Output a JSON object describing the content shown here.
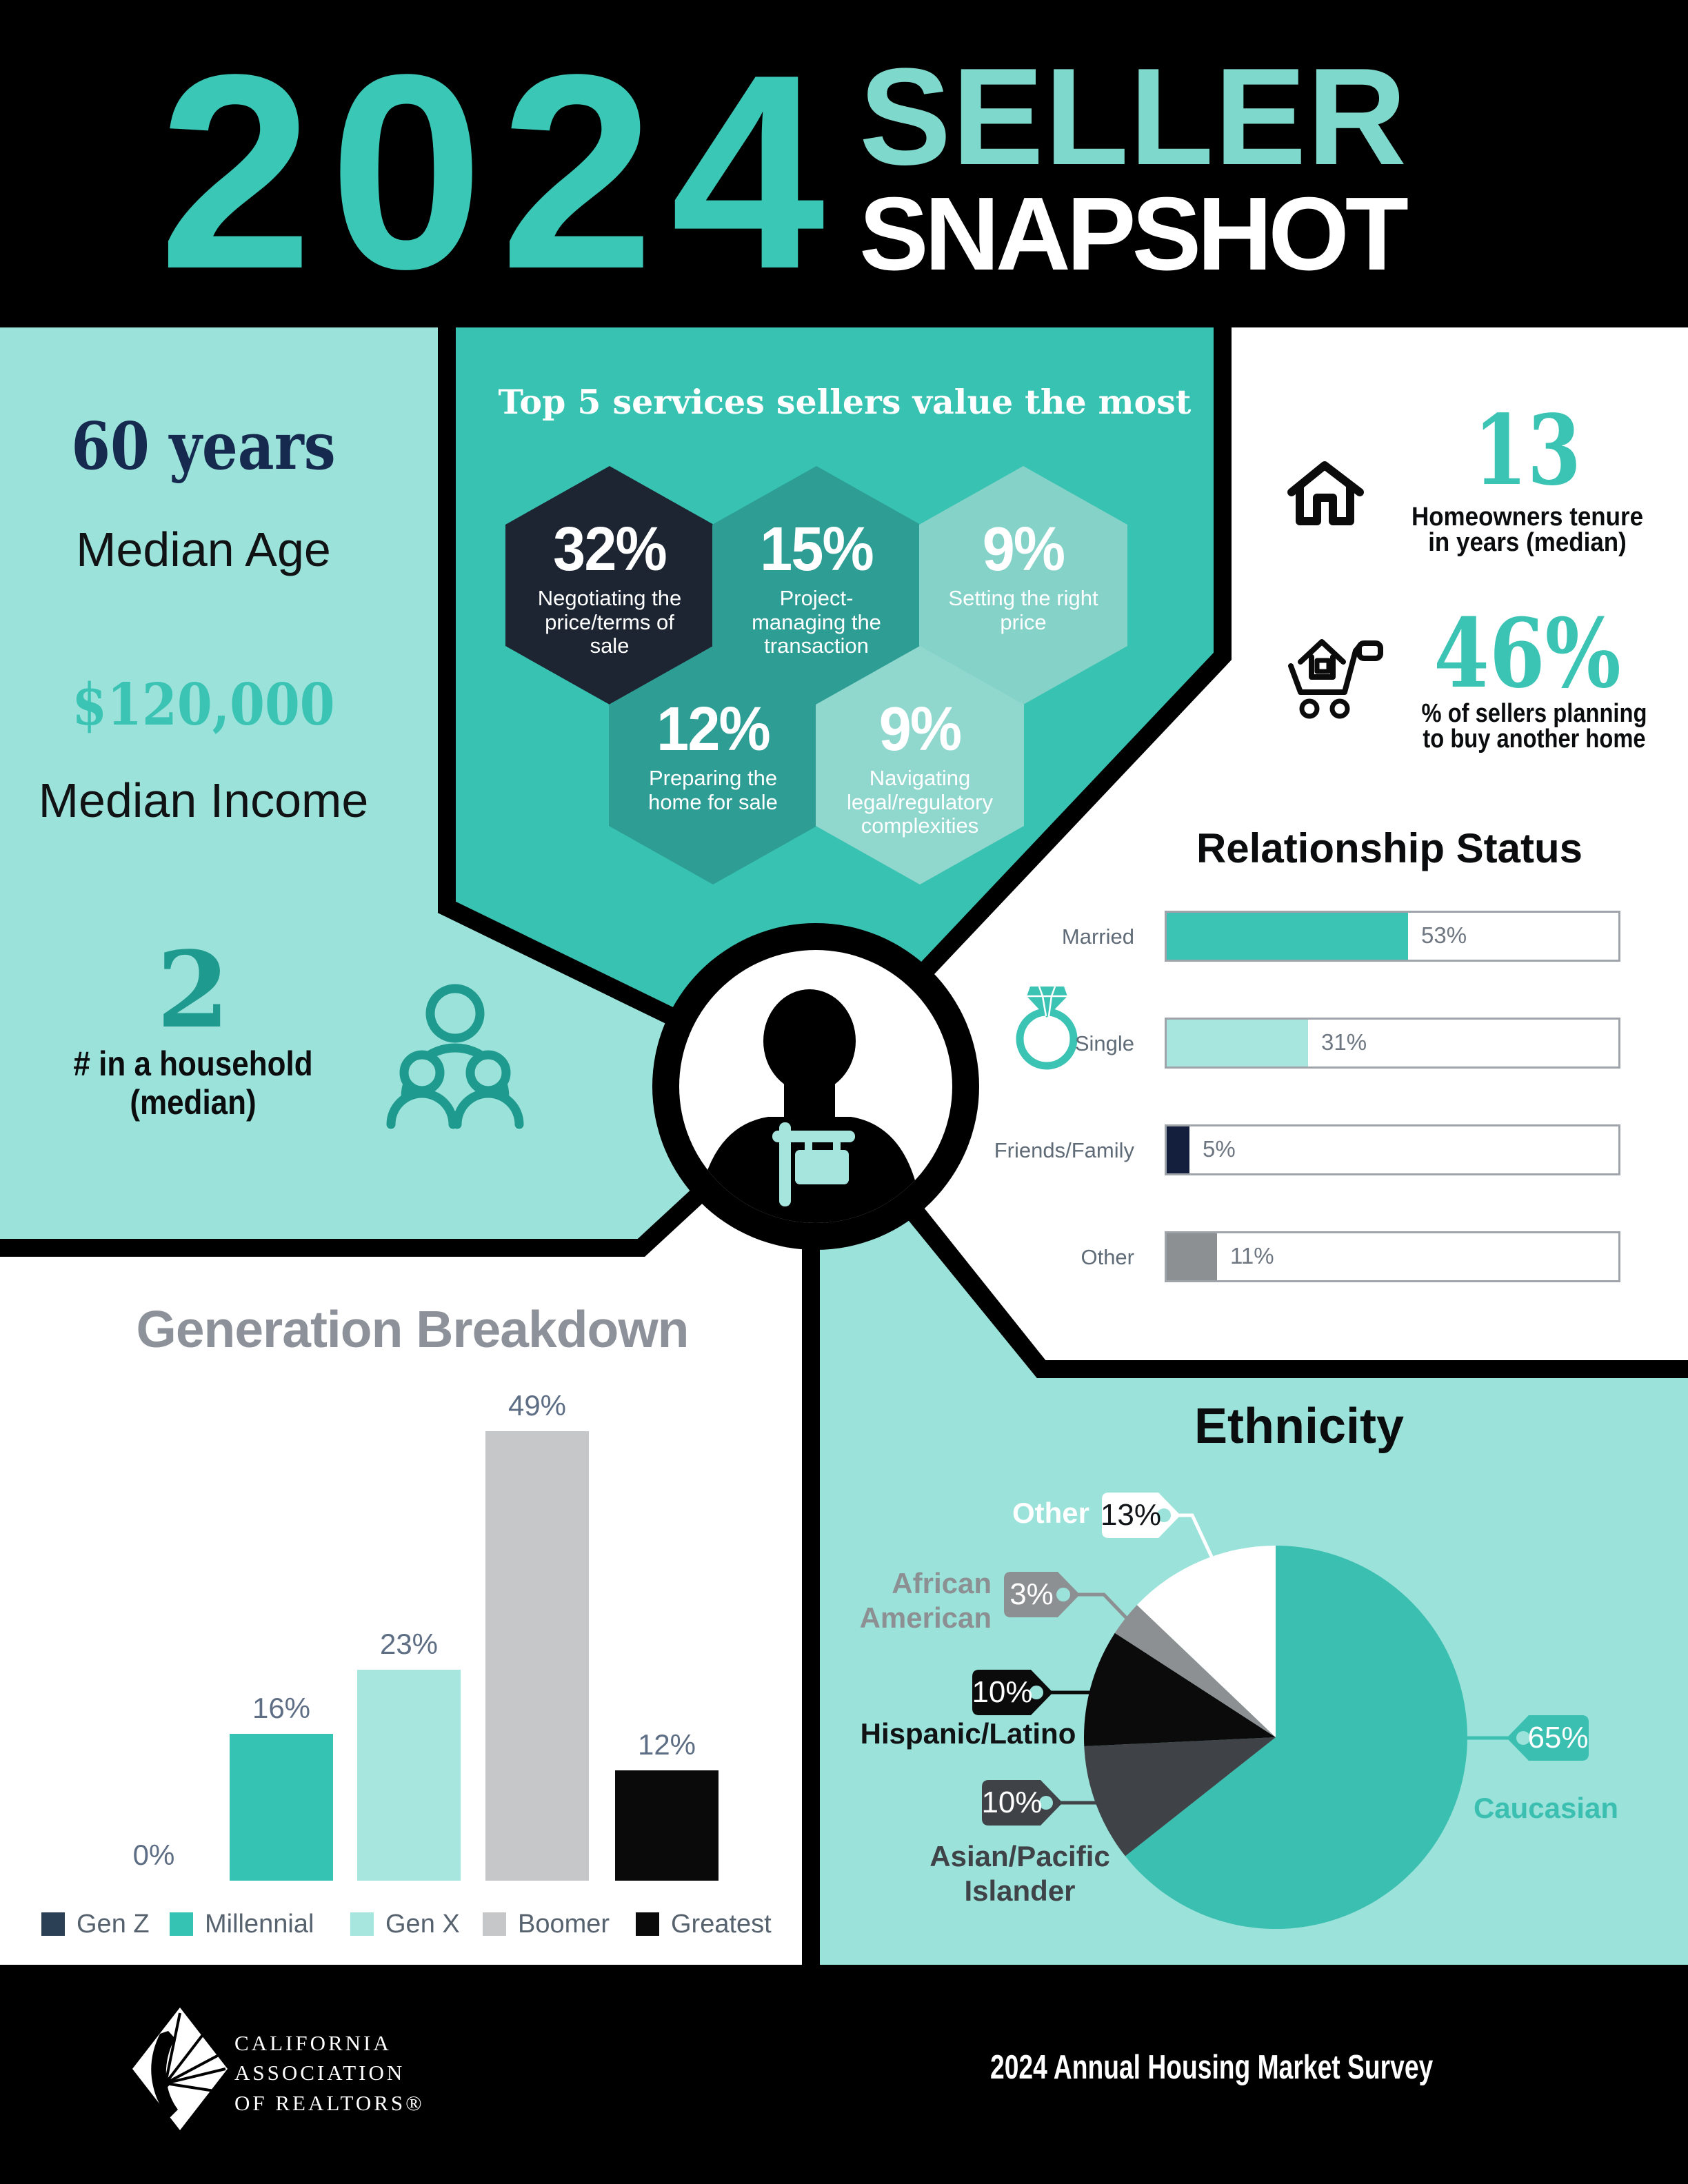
{
  "banner": {
    "year": "2024",
    "line1": "SELLER",
    "line2": "SNAPSHOT"
  },
  "left_stats": {
    "age_value": "60 years",
    "age_label": "Median Age",
    "income_value": "$120,000",
    "income_label": "Median Income",
    "household_value": "2",
    "household_label_line1": "# in a household",
    "household_label_line2": "(median)"
  },
  "services": {
    "title": "Top 5 services sellers value the most",
    "items": [
      {
        "pct": 32,
        "pct_display": "32%",
        "label": "Negotiating the price/terms of sale",
        "color": "#1D2532"
      },
      {
        "pct": 15,
        "pct_display": "15%",
        "label": "Project-managing the transaction",
        "color": "#2E9E95"
      },
      {
        "pct": 9,
        "pct_display": "9%",
        "label": "Setting the right price",
        "color": "#85D2C9"
      },
      {
        "pct": 12,
        "pct_display": "12%",
        "label": "Preparing the home for sale",
        "color": "#2E9E95"
      },
      {
        "pct": 9,
        "pct_display": "9%",
        "label": "Navigating legal/regulatory complexities",
        "color": "#90D7CE"
      }
    ]
  },
  "tenure": {
    "value": "13",
    "label_line1": "Homeowners tenure",
    "label_line2": "in years (median)"
  },
  "buy_again": {
    "value": "46%",
    "label_line1": "% of sellers planning",
    "label_line2": "to buy another home"
  },
  "relationship": {
    "title": "Relationship Status",
    "items": [
      {
        "label": "Married",
        "value": 53,
        "display": "53%",
        "color": "#3BC4B4"
      },
      {
        "label": "Single",
        "value": 31,
        "display": "31%",
        "color": "#A6E6DE"
      },
      {
        "label": "Friends/Family",
        "value": 5,
        "display": "5%",
        "color": "#141F3D"
      },
      {
        "label": "Other",
        "value": 11,
        "display": "11%",
        "color": "#8D9093"
      }
    ]
  },
  "generation": {
    "title": "Generation Breakdown",
    "items": [
      {
        "label": "Gen Z",
        "value": 0,
        "display": "0%",
        "color": "#2B4055"
      },
      {
        "label": "Millennial",
        "value": 16,
        "display": "16%",
        "color": "#35C4B4"
      },
      {
        "label": "Gen X",
        "value": 23,
        "display": "23%",
        "color": "#A6E6DE"
      },
      {
        "label": "Boomer",
        "value": 49,
        "display": "49%",
        "color": "#C6C7C9"
      },
      {
        "label": "Greatest",
        "value": 12,
        "display": "12%",
        "color": "#0A0A0A"
      }
    ]
  },
  "ethnicity": {
    "title": "Ethnicity",
    "slices": [
      {
        "label": "Caucasian",
        "value": 65,
        "display": "65%",
        "color": "#3ABFB1"
      },
      {
        "label": "Asian/Pacific Islander",
        "value": 10,
        "display": "10%",
        "color": "#3F4347"
      },
      {
        "label": "Hispanic/Latino",
        "value": 10,
        "display": "10%",
        "color": "#0B0B0C"
      },
      {
        "label": "African American",
        "value": 3,
        "display": "3%",
        "color": "#8D9092"
      },
      {
        "label": "Other",
        "value": 13,
        "display": "13%",
        "color": "#FFFFFF"
      }
    ]
  },
  "footer": {
    "org_line1": "CALIFORNIA",
    "org_line2": "ASSOCIATION",
    "org_line3": "OF REALTORS®",
    "survey": "2024 Annual Housing Market Survey"
  },
  "chart_data": [
    {
      "type": "bar",
      "title": "Relationship Status",
      "categories": [
        "Married",
        "Single",
        "Friends/Family",
        "Other"
      ],
      "values": [
        53,
        31,
        5,
        11
      ],
      "orientation": "horizontal",
      "xlabel": "",
      "ylabel": "",
      "xlim": [
        0,
        100
      ],
      "colors": [
        "#3BC4B4",
        "#A6E6DE",
        "#141F3D",
        "#8D9093"
      ],
      "data_labels": [
        "53%",
        "31%",
        "5%",
        "11%"
      ]
    },
    {
      "type": "bar",
      "title": "Generation Breakdown",
      "categories": [
        "Gen Z",
        "Millennial",
        "Gen X",
        "Boomer",
        "Greatest"
      ],
      "values": [
        0,
        16,
        23,
        49,
        12
      ],
      "orientation": "vertical",
      "xlabel": "",
      "ylabel": "",
      "ylim": [
        0,
        49
      ],
      "colors": [
        "#2B4055",
        "#35C4B4",
        "#A6E6DE",
        "#C6C7C9",
        "#0A0A0A"
      ],
      "data_labels": [
        "0%",
        "16%",
        "23%",
        "49%",
        "12%"
      ],
      "legend_position": "bottom"
    },
    {
      "type": "pie",
      "title": "Ethnicity",
      "categories": [
        "Caucasian",
        "Asian/Pacific Islander",
        "Hispanic/Latino",
        "African American",
        "Other"
      ],
      "values": [
        65,
        10,
        10,
        3,
        13
      ],
      "colors": [
        "#3ABFB1",
        "#3F4347",
        "#0B0B0C",
        "#8D9092",
        "#FFFFFF"
      ],
      "data_labels": [
        "65%",
        "10%",
        "10%",
        "3%",
        "13%"
      ],
      "start_angle_deg_from_top": 0,
      "direction": "clockwise"
    },
    {
      "type": "bar",
      "title": "Top 5 services sellers value the most",
      "categories": [
        "Negotiating the price/terms of sale",
        "Project-managing the transaction",
        "Setting the right price",
        "Preparing the home for sale",
        "Navigating legal/regulatory complexities"
      ],
      "values": [
        32,
        15,
        9,
        12,
        9
      ],
      "data_labels": [
        "32%",
        "15%",
        "9%",
        "12%",
        "9%"
      ],
      "note": "shown as hexagon badges"
    }
  ]
}
